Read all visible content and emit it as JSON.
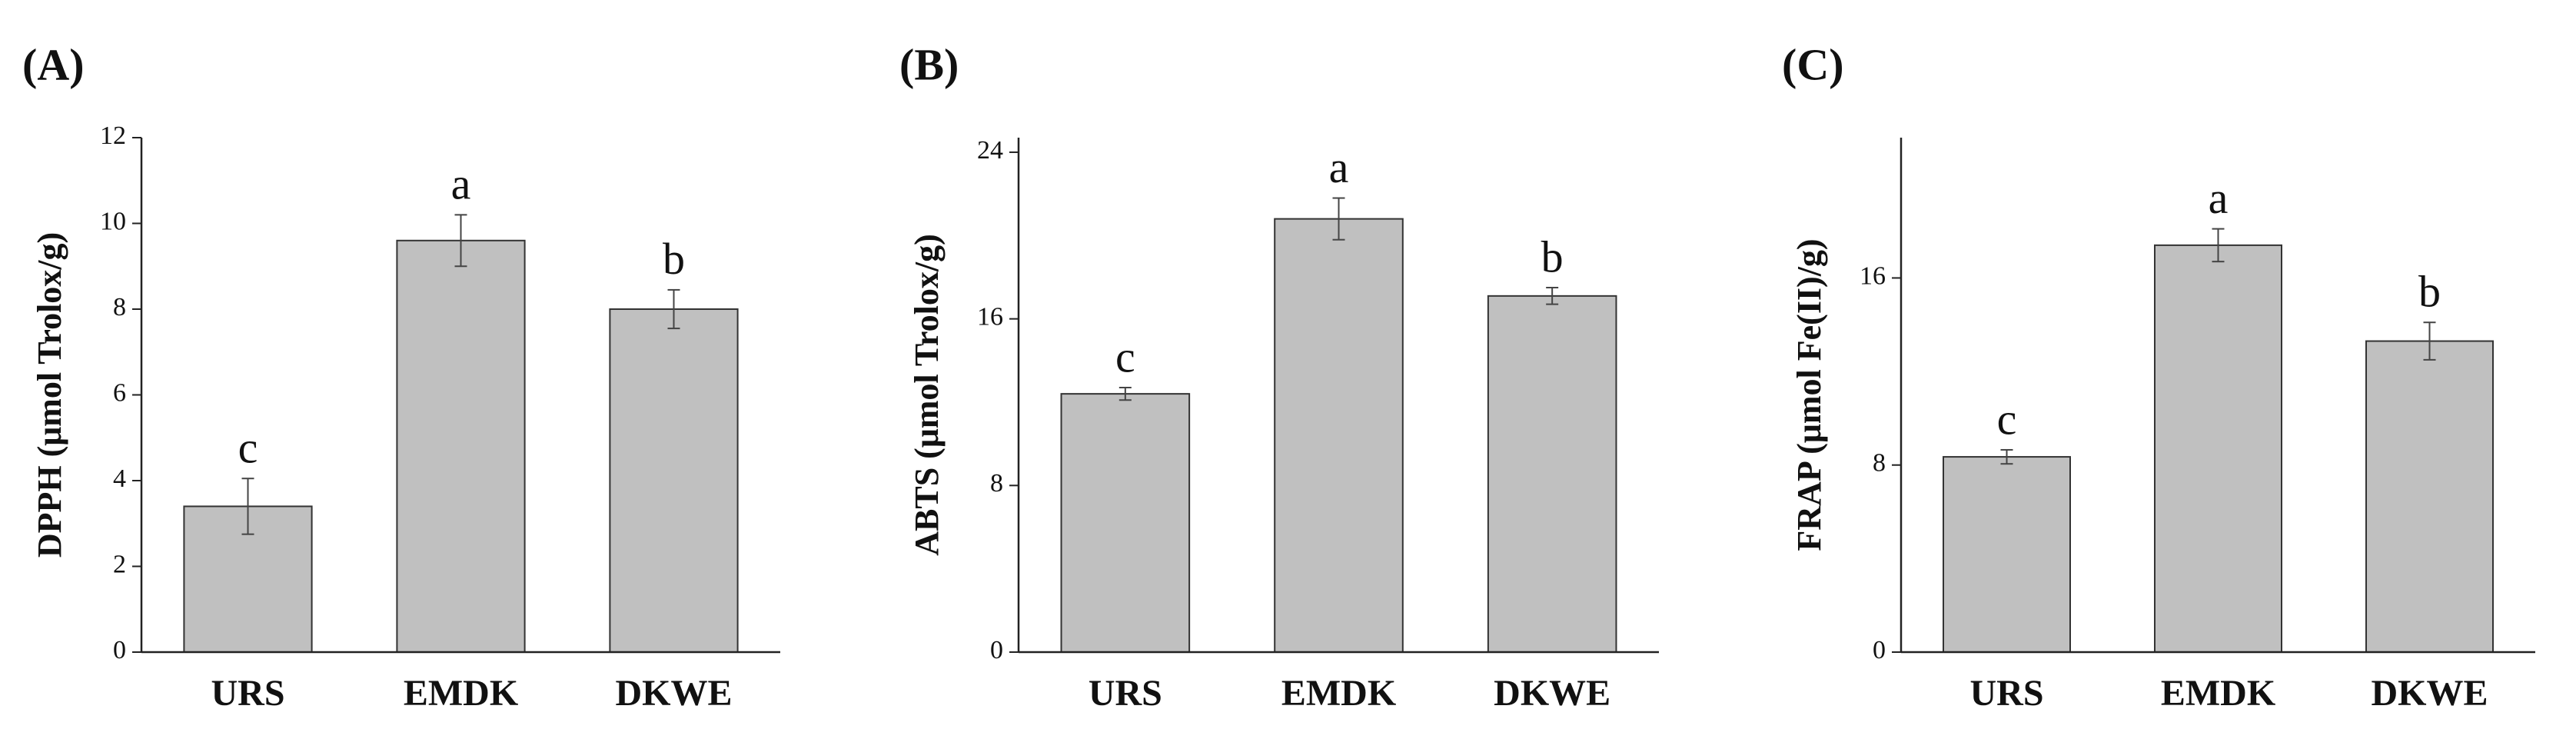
{
  "chart_data": [
    {
      "type": "bar",
      "panel_label": "(A)",
      "y_label": "DPPH (μmol Trolox/g)",
      "categories": [
        "URS",
        "EMDK",
        "DKWE"
      ],
      "values": [
        3.4,
        9.6,
        8.0
      ],
      "errors": [
        0.65,
        0.6,
        0.45
      ],
      "letters": [
        "c",
        "a",
        "b"
      ],
      "color": "#c0c0c0",
      "ylim": [
        0,
        12
      ],
      "yticks": [
        0,
        2,
        4,
        6,
        8,
        10,
        12
      ]
    },
    {
      "type": "bar",
      "panel_label": "(B)",
      "y_label": "ABTS (μmol Trolox/g)",
      "categories": [
        "URS",
        "EMDK",
        "DKWE"
      ],
      "values": [
        12.4,
        20.8,
        17.1
      ],
      "errors": [
        0.3,
        1.0,
        0.4
      ],
      "letters": [
        "c",
        "a",
        "b"
      ],
      "color": "#c0c0c0",
      "ylim": [
        0,
        24.7
      ],
      "yticks": [
        0,
        8,
        16,
        24
      ]
    },
    {
      "type": "bar",
      "panel_label": "(C)",
      "y_label": "FRAP (μmol Fe(II)/g)",
      "categories": [
        "URS",
        "EMDK",
        "DKWE"
      ],
      "values": [
        8.35,
        17.4,
        13.3
      ],
      "errors": [
        0.3,
        0.7,
        0.8
      ],
      "letters": [
        "c",
        "a",
        "b"
      ],
      "color": "#c0c0c0",
      "ylim": [
        0,
        22
      ],
      "yticks": [
        0,
        8,
        16
      ]
    }
  ]
}
